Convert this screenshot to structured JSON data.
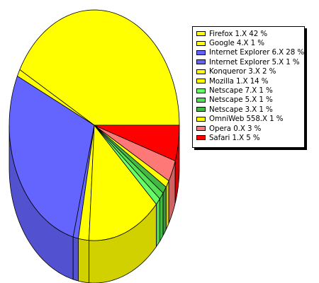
{
  "chart_data": {
    "type": "pie",
    "title": "",
    "legend_position": "right",
    "slices": [
      {
        "label": "Firefox 1.X",
        "percent": 42,
        "color": "#ffff00"
      },
      {
        "label": "Google 4.X",
        "percent": 1,
        "color": "#ffff00"
      },
      {
        "label": "Internet Explorer 6.X",
        "percent": 28,
        "color": "#6464ff"
      },
      {
        "label": "Internet Explorer 5.X",
        "percent": 1,
        "color": "#6464ff"
      },
      {
        "label": "Konqueror 3.X",
        "percent": 2,
        "color": "#ffff00"
      },
      {
        "label": "Mozilla 1.X",
        "percent": 14,
        "color": "#ffff00"
      },
      {
        "label": "Netscape 7.X",
        "percent": 1,
        "color": "#66ff66"
      },
      {
        "label": "Netscape 5.X",
        "percent": 1,
        "color": "#55e055"
      },
      {
        "label": "Netscape 3.X",
        "percent": 1,
        "color": "#44b844"
      },
      {
        "label": "OmniWeb 558.X",
        "percent": 1,
        "color": "#ffff00"
      },
      {
        "label": "Opera 0.X",
        "percent": 3,
        "color": "#ff7878"
      },
      {
        "label": "Safari 1.X",
        "percent": 5,
        "color": "#ff0000"
      }
    ]
  }
}
